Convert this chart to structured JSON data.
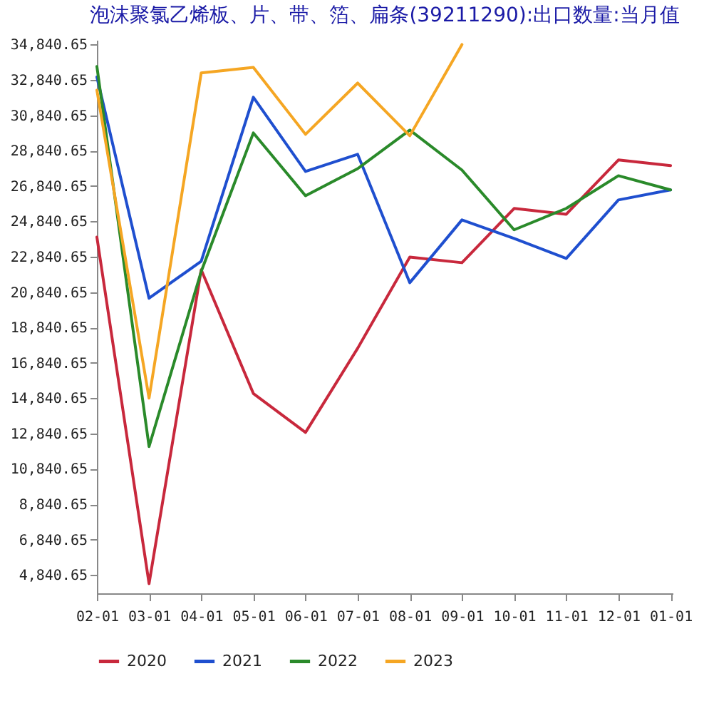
{
  "chart_data": {
    "type": "line",
    "title": "泡沫聚氯乙烯板、片、带、箔、扁条(39211290):出口数量:当月值",
    "categories": [
      "02-01",
      "03-01",
      "04-01",
      "05-01",
      "06-01",
      "07-01",
      "08-01",
      "09-01",
      "10-01",
      "11-01",
      "12-01",
      "01-01"
    ],
    "series": [
      {
        "name": "2020",
        "color": "#c8283c",
        "values": [
          23950,
          4350,
          22100,
          15100,
          12900,
          17660,
          22820,
          22500,
          25570,
          25240,
          28310,
          27990
        ]
      },
      {
        "name": "2021",
        "color": "#1f4fcf",
        "values": [
          33000,
          20490,
          22580,
          31860,
          27660,
          28630,
          21370,
          24920,
          23870,
          22740,
          26050,
          26620
        ]
      },
      {
        "name": "2022",
        "color": "#2a8a2a",
        "values": [
          33600,
          12100,
          22000,
          29840,
          26290,
          27820,
          30000,
          27740,
          24360,
          25570,
          27420,
          26620
        ]
      },
      {
        "name": "2023",
        "color": "#f5a623",
        "values": [
          32260,
          14840,
          33230,
          33550,
          29760,
          32660,
          29680,
          34840,
          null,
          null,
          null,
          null
        ]
      }
    ],
    "ylim": [
      3800,
      35100
    ],
    "yticks": [
      {
        "value": 4840.65,
        "label": "4,840.65"
      },
      {
        "value": 6840.65,
        "label": "6,840.65"
      },
      {
        "value": 8840.65,
        "label": "8,840.65"
      },
      {
        "value": 10840.65,
        "label": "10,840.65"
      },
      {
        "value": 12840.65,
        "label": "12,840.65"
      },
      {
        "value": 14840.65,
        "label": "14,840.65"
      },
      {
        "value": 16840.65,
        "label": "16,840.65"
      },
      {
        "value": 18840.65,
        "label": "18,840.65"
      },
      {
        "value": 20840.65,
        "label": "20,840.65"
      },
      {
        "value": 22840.65,
        "label": "22,840.65"
      },
      {
        "value": 24840.65,
        "label": "24,840.65"
      },
      {
        "value": 26840.65,
        "label": "26,840.65"
      },
      {
        "value": 28840.65,
        "label": "28,840.65"
      },
      {
        "value": 30840.65,
        "label": "30,840.65"
      },
      {
        "value": 32840.65,
        "label": "32,840.65"
      },
      {
        "value": 34840.65,
        "label": "34,840.65"
      }
    ],
    "grid": false,
    "legend": "bottom",
    "marker": "none",
    "line_style": "solid"
  }
}
